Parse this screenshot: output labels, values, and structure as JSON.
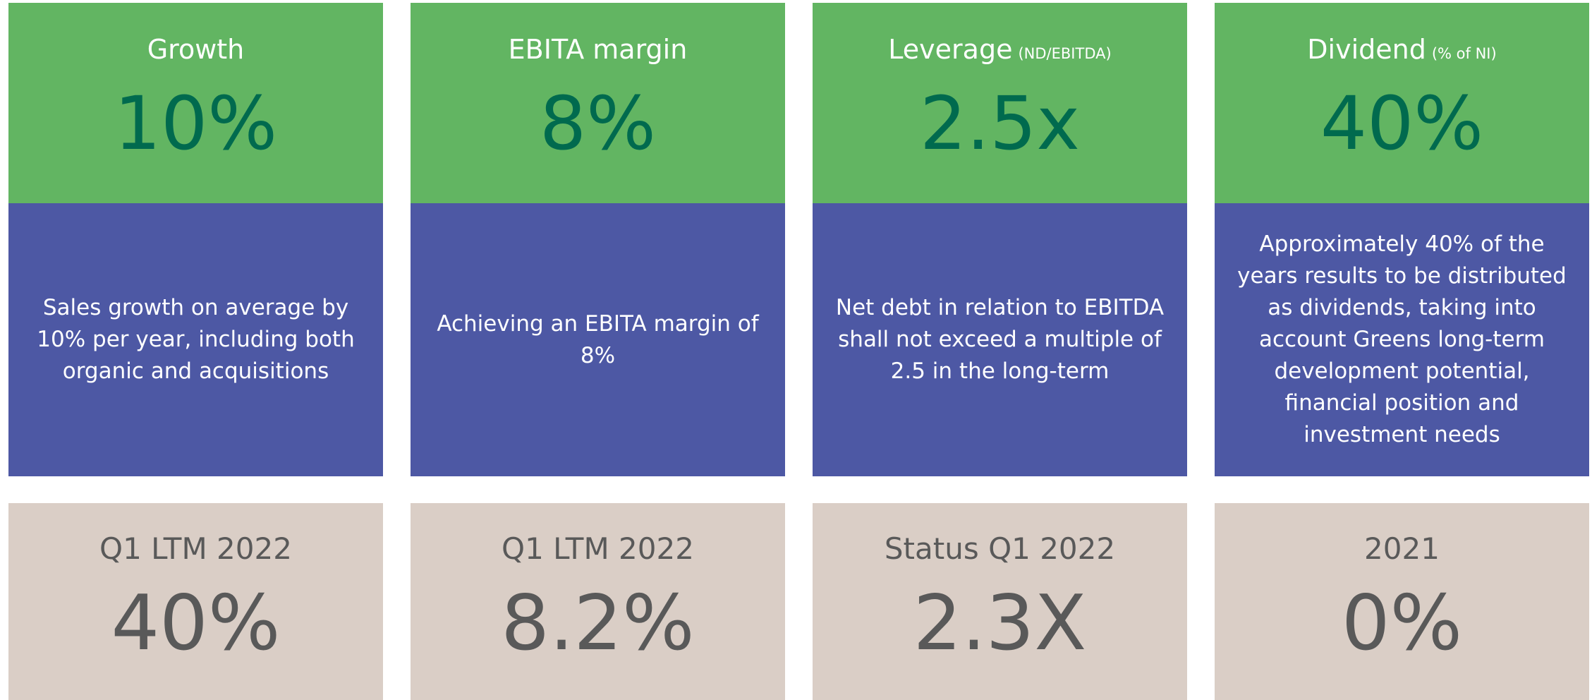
{
  "columns": [
    {
      "title": "Growth",
      "target": "10%",
      "description": "Sales growth on average by 10% per year, including both organic and acquisitions",
      "period": "Q1 LTM 2022",
      "actual": "40%"
    },
    {
      "title": "EBITA margin",
      "target": "8%",
      "description": "Achieving an EBITA margin of 8%",
      "period": "Q1 LTM 2022",
      "actual": "8.2%"
    },
    {
      "title": "Leverage",
      "subtitle": "(ND/EBITDA)",
      "target": "2.5x",
      "description": "Net debt in relation to EBITDA shall not exceed a multiple of 2.5 in the long-term",
      "period": "Status Q1 2022",
      "actual": "2.3X"
    },
    {
      "title": "Dividend",
      "subtitle": "(% of NI)",
      "target": "40%",
      "description": "Approximately 40% of the years results to be distributed as dividends, taking into account Greens long-term development potential, financial position and investment needs",
      "period": "2021",
      "actual": "0%"
    }
  ]
}
